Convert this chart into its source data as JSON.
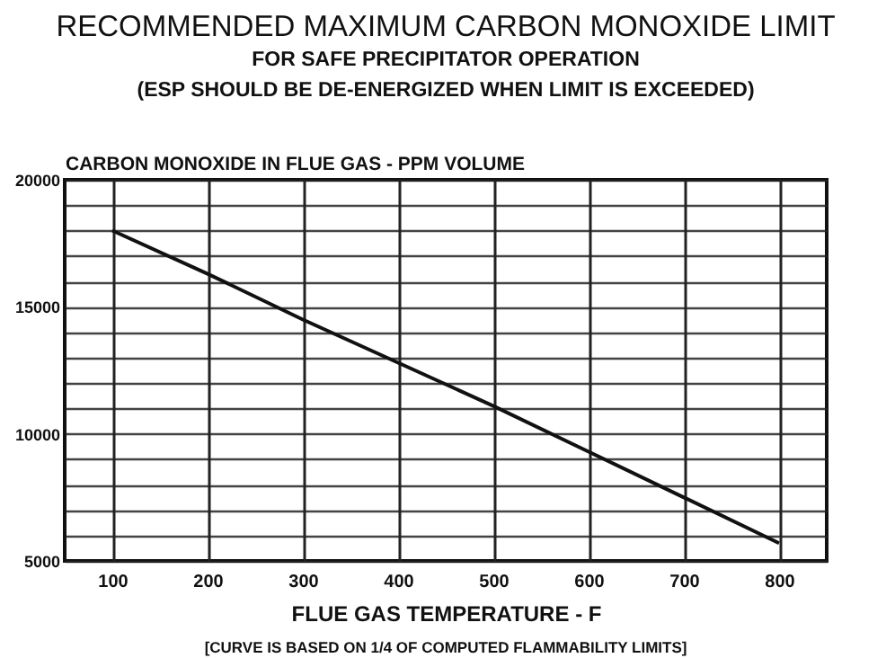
{
  "chart_data": {
    "type": "line",
    "title": "RECOMMENDED MAXIMUM CARBON MONOXIDE LIMIT",
    "subtitle": "FOR SAFE PRECIPITATOR OPERATION",
    "xlabel": "FLUE GAS TEMPERATURE -   F",
    "ylabel": "CARBON MONOXIDE IN FLUE GAS - PPM VOLUME",
    "annotations": [
      "(ESP SHOULD BE DE-ENERGIZED WHEN LIMIT IS EXCEEDED)",
      "[CURVE IS BASED ON 1/4 OF COMPUTED FLAMMABILITY LIMITS]"
    ],
    "x": [
      100,
      200,
      300,
      400,
      500,
      600,
      700,
      800
    ],
    "series": [
      {
        "color": "#111111",
        "values": [
          18000,
          16300,
          14500,
          12800,
          11100,
          9300,
          7500,
          5700
        ]
      }
    ],
    "xlim": [
      50,
      850
    ],
    "xticks": [
      100,
      200,
      300,
      400,
      500,
      600,
      700,
      800
    ],
    "ylim": [
      5000,
      20000
    ],
    "yticks": [
      5000,
      {
        "value": 6000,
        "label": null
      },
      {
        "value": 7000,
        "label": null
      },
      {
        "value": 8000,
        "label": null
      },
      {
        "value": 9000,
        "label": null
      },
      10000,
      {
        "value": 11000,
        "label": null
      },
      {
        "value": 12000,
        "label": null
      },
      {
        "value": 13000,
        "label": null
      },
      {
        "value": 14000,
        "label": null
      },
      15000,
      {
        "value": 16000,
        "label": null
      },
      {
        "value": 17000,
        "label": null
      },
      {
        "value": 18000,
        "label": null
      },
      {
        "value": 19000,
        "label": null
      },
      20000
    ],
    "grid": true
  }
}
